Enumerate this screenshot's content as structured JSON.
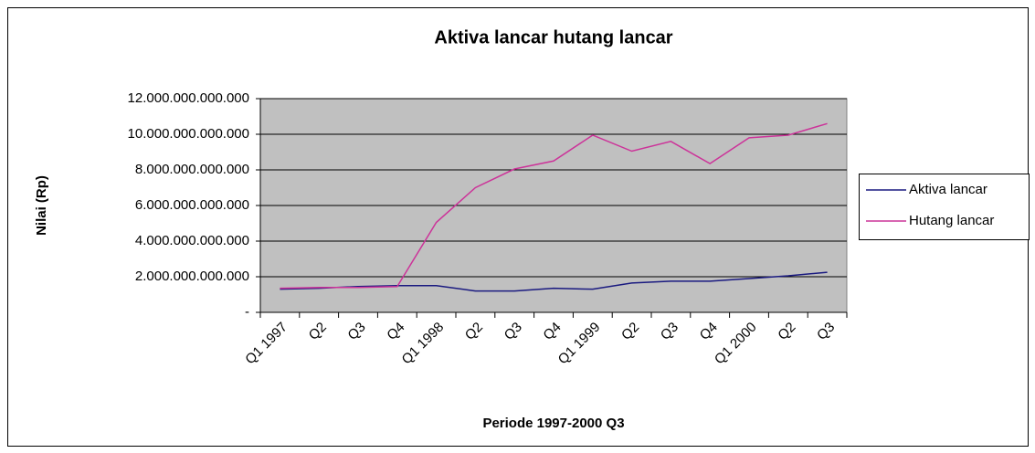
{
  "chart_data": {
    "type": "line",
    "title": "Aktiva lancar hutang lancar",
    "x_label": "Periode 1997-2000 Q3",
    "y_label": "Nilai (Rp)",
    "categories": [
      "Q1 1997",
      "Q2",
      "Q3",
      "Q4",
      "Q1 1998",
      "Q2",
      "Q3",
      "Q4",
      "Q1 1999",
      "Q2",
      "Q3",
      "Q4",
      "Q1 2000",
      "Q2",
      "Q3"
    ],
    "series": [
      {
        "name": "Aktiva lancar",
        "color": "#1a1a80",
        "values": [
          1300000000000,
          1350000000000,
          1450000000000,
          1500000000000,
          1500000000000,
          1200000000000,
          1200000000000,
          1350000000000,
          1300000000000,
          1650000000000,
          1750000000000,
          1750000000000,
          1900000000000,
          2050000000000,
          2250000000000
        ]
      },
      {
        "name": "Hutang lancar",
        "color": "#cc3399",
        "values": [
          1350000000000,
          1400000000000,
          1400000000000,
          1450000000000,
          5050000000000,
          7000000000000,
          8050000000000,
          8500000000000,
          9950000000000,
          9050000000000,
          9600000000000,
          8350000000000,
          9800000000000,
          9950000000000,
          10600000000000
        ]
      }
    ],
    "ylim": [
      0,
      12000000000000
    ],
    "yticks": [
      {
        "value": 0,
        "label": "-"
      },
      {
        "value": 2000000000000,
        "label": "2.000.000.000.000"
      },
      {
        "value": 4000000000000,
        "label": "4.000.000.000.000"
      },
      {
        "value": 6000000000000,
        "label": "6.000.000.000.000"
      },
      {
        "value": 8000000000000,
        "label": "8.000.000.000.000"
      },
      {
        "value": 10000000000000,
        "label": "10.000.000.000.000"
      },
      {
        "value": 12000000000000,
        "label": "12.000.000.000.000"
      }
    ],
    "grid": true,
    "legend": "right"
  }
}
